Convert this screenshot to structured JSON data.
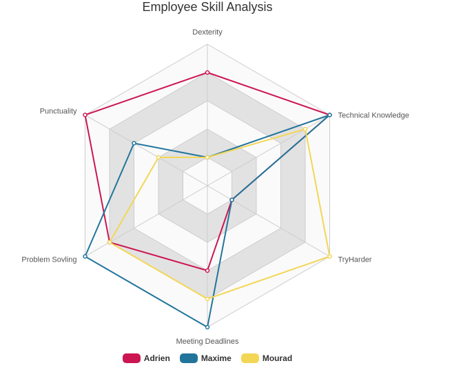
{
  "chart_data": {
    "type": "radar",
    "title": "Employee Skill Analysis",
    "categories": [
      "Dexterity",
      "Technical Knowledge",
      "TryHarder",
      "Meeting Deadlines",
      "Problem Sovling",
      "Punctuality"
    ],
    "range": [
      0,
      5
    ],
    "rings": 5,
    "series": [
      {
        "name": "Adrien",
        "color": "#cc1651",
        "values": [
          4,
          5,
          1,
          3,
          4,
          5
        ]
      },
      {
        "name": "Maxime",
        "color": "#21759b",
        "values": [
          1,
          5,
          1,
          5,
          5,
          3
        ]
      },
      {
        "name": "Mourad",
        "color": "#f3d656",
        "values": [
          1,
          4,
          5,
          4,
          4,
          2
        ]
      }
    ],
    "grid": true,
    "legend_position": "bottom"
  }
}
